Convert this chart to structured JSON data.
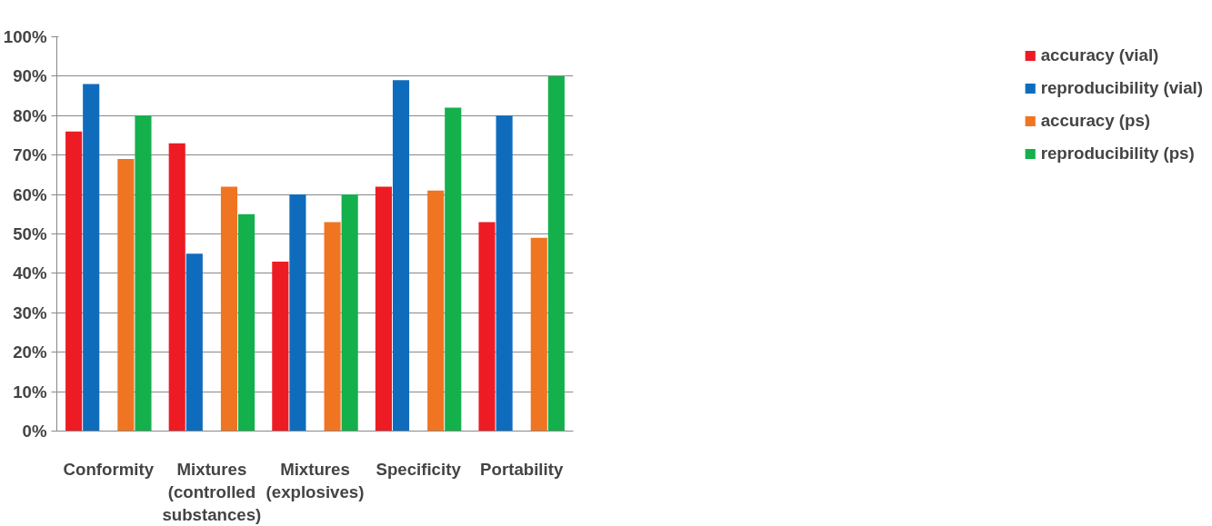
{
  "chart_data": {
    "type": "bar",
    "categories": [
      "Conformity",
      "Mixtures\n(controlled\nsubstances)",
      "Mixtures\n(explosives)",
      "Specificity",
      "Portability"
    ],
    "series": [
      {
        "name": "accuracy (vial)",
        "color": "#ed1c24",
        "values": [
          76,
          73,
          43,
          62,
          53
        ]
      },
      {
        "name": "reproducibility (vial)",
        "color": "#0f6cbd",
        "values": [
          88,
          45,
          60,
          89,
          80
        ]
      },
      {
        "name": "accuracy (ps)",
        "color": "#f07522",
        "values": [
          69,
          62,
          53,
          61,
          49
        ]
      },
      {
        "name": "reproducibility (ps)",
        "color": "#14b04c",
        "values": [
          80,
          55,
          60,
          82,
          90
        ]
      }
    ],
    "ylim": [
      0,
      100
    ],
    "yticks": [
      {
        "value": 0,
        "label": "0%"
      },
      {
        "value": 10,
        "label": "10%"
      },
      {
        "value": 20,
        "label": "20%"
      },
      {
        "value": 30,
        "label": "30%"
      },
      {
        "value": 40,
        "label": "40%"
      },
      {
        "value": 50,
        "label": "50%"
      },
      {
        "value": 60,
        "label": "60%"
      },
      {
        "value": 70,
        "label": "70%"
      },
      {
        "value": 80,
        "label": "80%"
      },
      {
        "value": 90,
        "label": "90%"
      },
      {
        "value": 100,
        "label": "100%"
      }
    ],
    "grid": "y",
    "legend": "right"
  }
}
